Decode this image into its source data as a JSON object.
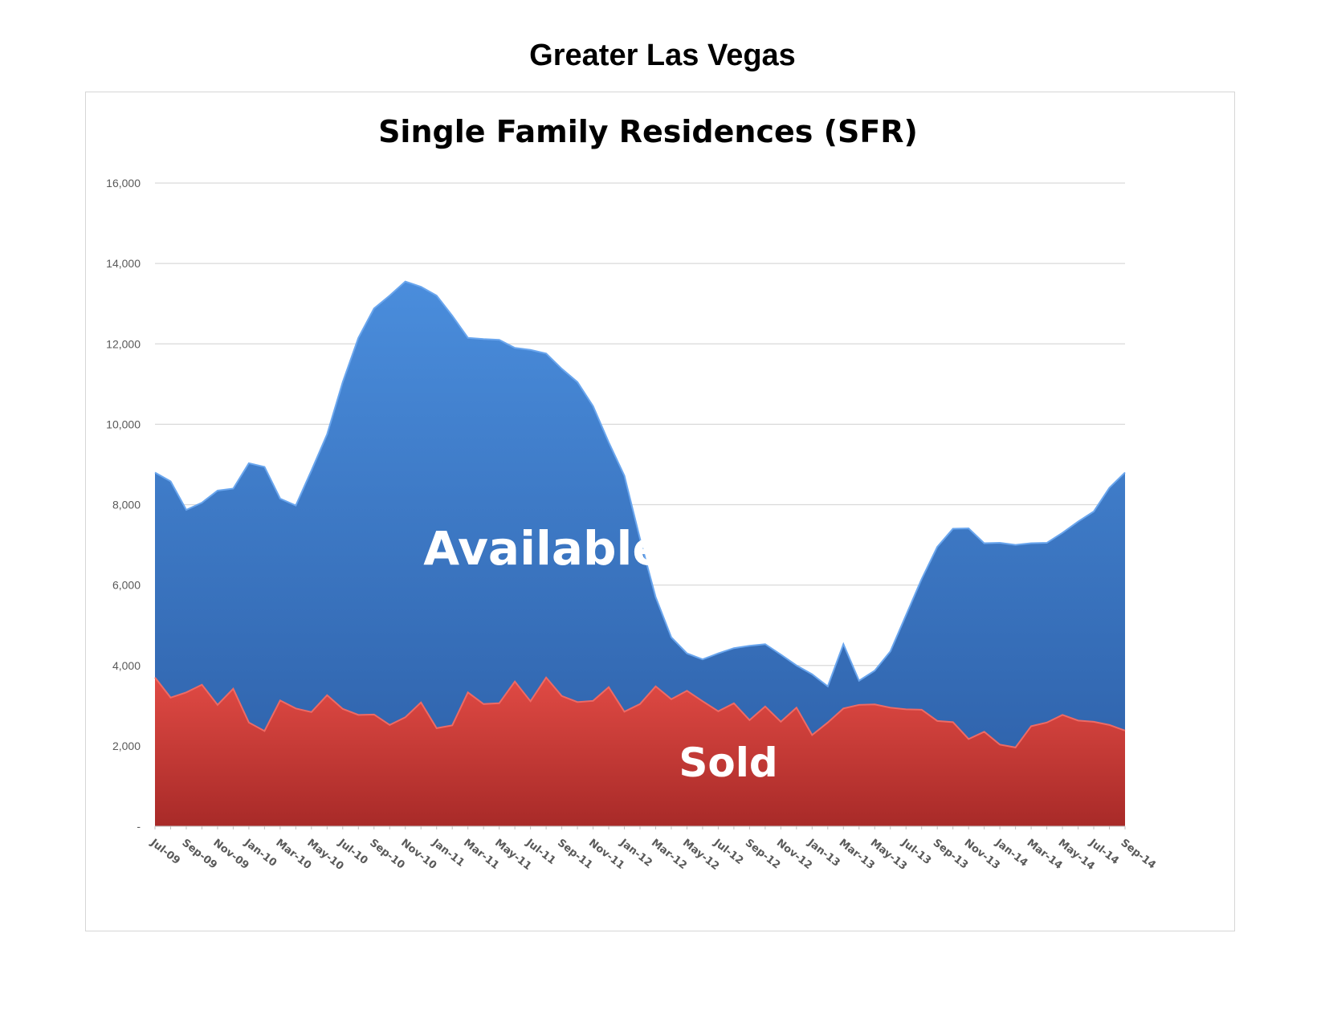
{
  "page": {
    "title": "Greater Las Vegas"
  },
  "chart_data": {
    "type": "area",
    "title": "Single Family Residences (SFR)",
    "xlabel": "",
    "ylabel": "",
    "ylim": [
      0,
      16000
    ],
    "grid": true,
    "y_ticks": [
      {
        "value": 0,
        "label": "-"
      },
      {
        "value": 2000,
        "label": "2,000"
      },
      {
        "value": 4000,
        "label": "4,000"
      },
      {
        "value": 6000,
        "label": "6,000"
      },
      {
        "value": 8000,
        "label": "8,000"
      },
      {
        "value": 10000,
        "label": "10,000"
      },
      {
        "value": 12000,
        "label": "12,000"
      },
      {
        "value": 14000,
        "label": "14,000"
      },
      {
        "value": 16000,
        "label": "16,000"
      }
    ],
    "x": [
      "Jul-09",
      "Aug-09",
      "Sep-09",
      "Oct-09",
      "Nov-09",
      "Dec-09",
      "Jan-10",
      "Feb-10",
      "Mar-10",
      "Apr-10",
      "May-10",
      "Jun-10",
      "Jul-10",
      "Aug-10",
      "Sep-10",
      "Oct-10",
      "Nov-10",
      "Dec-10",
      "Jan-11",
      "Feb-11",
      "Mar-11",
      "Apr-11",
      "May-11",
      "Jun-11",
      "Jul-11",
      "Aug-11",
      "Sep-11",
      "Oct-11",
      "Nov-11",
      "Dec-11",
      "Jan-12",
      "Feb-12",
      "Mar-12",
      "Apr-12",
      "May-12",
      "Jun-12",
      "Jul-12",
      "Aug-12",
      "Sep-12",
      "Oct-12",
      "Nov-12",
      "Dec-12",
      "Jan-13",
      "Feb-13",
      "Mar-13",
      "Apr-13",
      "May-13",
      "Jun-13",
      "Jul-13",
      "Aug-13",
      "Sep-13",
      "Oct-13",
      "Nov-13",
      "Dec-13",
      "Jan-14",
      "Feb-14",
      "Mar-14",
      "Apr-14",
      "May-14",
      "Jun-14",
      "Jul-14",
      "Aug-14",
      "Sep-14"
    ],
    "x_tick_labels": [
      "Jul-09",
      "Sep-09",
      "Nov-09",
      "Jan-10",
      "Mar-10",
      "May-10",
      "Jul-10",
      "Sep-10",
      "Nov-10",
      "Jan-11",
      "Mar-11",
      "May-11",
      "Jul-11",
      "Sep-11",
      "Nov-11",
      "Jan-12",
      "Mar-12",
      "May-12",
      "Jul-12",
      "Sep-12",
      "Nov-12",
      "Jan-13",
      "Mar-13",
      "May-13",
      "Jul-13",
      "Sep-13",
      "Nov-13",
      "Jan-14",
      "Mar-14",
      "May-14",
      "Jul-14",
      "Sep-14"
    ],
    "series": [
      {
        "name": "Available",
        "color": "#3a78c9",
        "values": [
          8800,
          8580,
          7870,
          8050,
          8350,
          8400,
          9030,
          8940,
          8150,
          7980,
          8850,
          9750,
          11050,
          12150,
          12880,
          13200,
          13550,
          13420,
          13200,
          12700,
          12150,
          12120,
          12100,
          11900,
          11850,
          11760,
          11380,
          11050,
          10450,
          9550,
          8720,
          7150,
          5700,
          4700,
          4300,
          4150,
          4300,
          4430,
          4490,
          4530,
          4270,
          4000,
          3780,
          3480,
          4530,
          3620,
          3870,
          4350,
          5250,
          6150,
          6950,
          7400,
          7410,
          7040,
          7050,
          7000,
          7040,
          7050,
          7300,
          7580,
          7830,
          8420,
          8800
        ],
        "label_text": "Available"
      },
      {
        "name": "Sold",
        "color": "#d64541",
        "values": [
          3700,
          3200,
          3330,
          3520,
          3020,
          3420,
          2580,
          2370,
          3130,
          2930,
          2840,
          3260,
          2920,
          2770,
          2780,
          2520,
          2710,
          3080,
          2440,
          2510,
          3330,
          3040,
          3060,
          3600,
          3110,
          3700,
          3240,
          3090,
          3120,
          3460,
          2850,
          3040,
          3480,
          3160,
          3370,
          3110,
          2860,
          3060,
          2640,
          2980,
          2600,
          2950,
          2270,
          2580,
          2930,
          3020,
          3030,
          2950,
          2910,
          2900,
          2620,
          2590,
          2170,
          2350,
          2030,
          1960,
          2490,
          2580,
          2770,
          2630,
          2600,
          2520,
          2380
        ],
        "label_text": "Sold"
      }
    ]
  }
}
